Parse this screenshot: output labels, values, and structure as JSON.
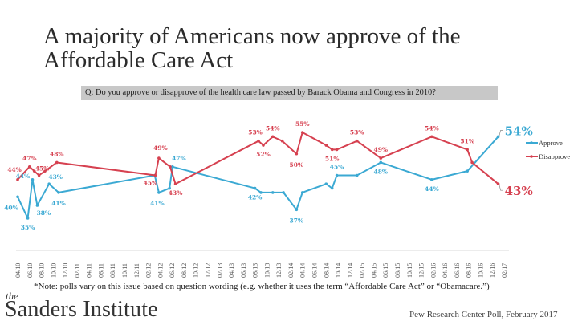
{
  "title": "A majority of Americans now approve of the Affordable Care Act",
  "question": "Q: Do you approve or disapprove of the health care law passed by Barack Obama and Congress in 2010?",
  "note": "*Note: polls vary on this issue based on question wording (e.g. whether it uses the term “Affordable Care Act” or “Obamacare.”)",
  "brand": {
    "the": "the",
    "name": "Sanders Institute"
  },
  "source": "Pew Research Center Poll, February 2017",
  "colors": {
    "approve": "#3ba9d3",
    "disapprove": "#d64150",
    "axis": "#d9d9d9",
    "tick_text": "#555555"
  },
  "chart_data": {
    "type": "line",
    "title": "A majority of Americans now approve of the Affordable Care Act",
    "xlabel": "",
    "ylabel": "",
    "grid": false,
    "legend_position": "right",
    "categories": [
      "04/10",
      "06/10",
      "08/10",
      "10/10",
      "12/10",
      "02/11",
      "04/11",
      "06/11",
      "08/11",
      "10/11",
      "12/11",
      "02/12",
      "04/12",
      "06/12",
      "08/12",
      "10/12",
      "12/12",
      "02/13",
      "04/13",
      "06/13",
      "08/13",
      "10/13",
      "12/13",
      "02/14",
      "04/14",
      "06/14",
      "08/14",
      "10/14",
      "12/14",
      "02/15",
      "04/15",
      "06/15",
      "08/15",
      "10/15",
      "12/15",
      "02/16",
      "04/16",
      "06/16",
      "08/16",
      "10/16",
      "12/16",
      "02/17"
    ],
    "ylim": [
      30,
      58
    ],
    "series": [
      {
        "name": "Approve",
        "points": [
          {
            "x": 0.0,
            "y": 40,
            "label": "40%"
          },
          {
            "x": 0.85,
            "y": 35,
            "label": "35%"
          },
          {
            "x": 1.25,
            "y": 44,
            "label": "44%"
          },
          {
            "x": 1.65,
            "y": 38,
            "label": "38%"
          },
          {
            "x": 2.65,
            "y": 43,
            "label": "43%"
          },
          {
            "x": 3.45,
            "y": 41,
            "label": "41%"
          },
          {
            "x": 11.55,
            "y": 45,
            "label": ""
          },
          {
            "x": 11.9,
            "y": 41,
            "label": "41%"
          },
          {
            "x": 12.8,
            "y": 42,
            "label": ""
          },
          {
            "x": 13.05,
            "y": 47,
            "label": "47%"
          },
          {
            "x": 20.0,
            "y": 42,
            "label": "42%"
          },
          {
            "x": 20.5,
            "y": 41,
            "label": ""
          },
          {
            "x": 21.5,
            "y": 41,
            "label": ""
          },
          {
            "x": 22.4,
            "y": 41,
            "label": ""
          },
          {
            "x": 23.5,
            "y": 37,
            "label": "37%"
          },
          {
            "x": 24.0,
            "y": 41,
            "label": ""
          },
          {
            "x": 26.0,
            "y": 43,
            "label": ""
          },
          {
            "x": 26.5,
            "y": 42,
            "label": ""
          },
          {
            "x": 26.9,
            "y": 45,
            "label": "45%"
          },
          {
            "x": 28.6,
            "y": 45,
            "label": ""
          },
          {
            "x": 30.6,
            "y": 48,
            "label": "48%"
          },
          {
            "x": 34.9,
            "y": 44,
            "label": "44%"
          },
          {
            "x": 37.9,
            "y": 46,
            "label": ""
          },
          {
            "x": 40.5,
            "y": 54,
            "label": "54%"
          }
        ]
      },
      {
        "name": "Disapprove",
        "points": [
          {
            "x": 0.0,
            "y": 44,
            "label": "44%"
          },
          {
            "x": 1.0,
            "y": 47,
            "label": "47%"
          },
          {
            "x": 1.4,
            "y": 46,
            "label": ""
          },
          {
            "x": 1.8,
            "y": 45,
            "label": "45%"
          },
          {
            "x": 2.3,
            "y": 46,
            "label": ""
          },
          {
            "x": 3.3,
            "y": 48,
            "label": "48%"
          },
          {
            "x": 11.6,
            "y": 45,
            "label": "45%"
          },
          {
            "x": 11.9,
            "y": 49,
            "label": "49%"
          },
          {
            "x": 12.85,
            "y": 47,
            "label": ""
          },
          {
            "x": 13.3,
            "y": 43,
            "label": "43%"
          },
          {
            "x": 20.3,
            "y": 53,
            "label": "53%"
          },
          {
            "x": 20.7,
            "y": 52,
            "label": "52%"
          },
          {
            "x": 21.5,
            "y": 54,
            "label": "54%"
          },
          {
            "x": 22.3,
            "y": 53,
            "label": ""
          },
          {
            "x": 23.5,
            "y": 50,
            "label": "50%"
          },
          {
            "x": 24.0,
            "y": 55,
            "label": "55%"
          },
          {
            "x": 26.0,
            "y": 52,
            "label": ""
          },
          {
            "x": 26.5,
            "y": 51,
            "label": "51%"
          },
          {
            "x": 26.9,
            "y": 51,
            "label": ""
          },
          {
            "x": 28.6,
            "y": 53,
            "label": "53%"
          },
          {
            "x": 30.6,
            "y": 49,
            "label": "49%"
          },
          {
            "x": 34.9,
            "y": 54,
            "label": "54%"
          },
          {
            "x": 37.9,
            "y": 51,
            "label": "51%"
          },
          {
            "x": 38.3,
            "y": 48,
            "label": ""
          },
          {
            "x": 40.5,
            "y": 43,
            "label": "43%"
          }
        ]
      }
    ],
    "final_labels": {
      "approve": "54%",
      "disapprove": "43%"
    }
  }
}
